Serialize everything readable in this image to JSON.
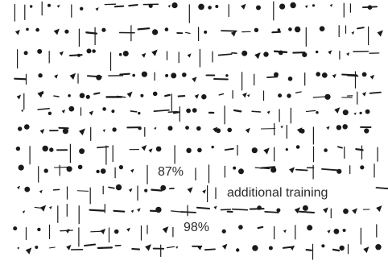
{
  "labels": {
    "pct_87": "87%",
    "additional_training": "additional training",
    "pct_98": "98%"
  },
  "colors": {
    "ink": "#1a1a1a",
    "background": "#ffffff"
  }
}
